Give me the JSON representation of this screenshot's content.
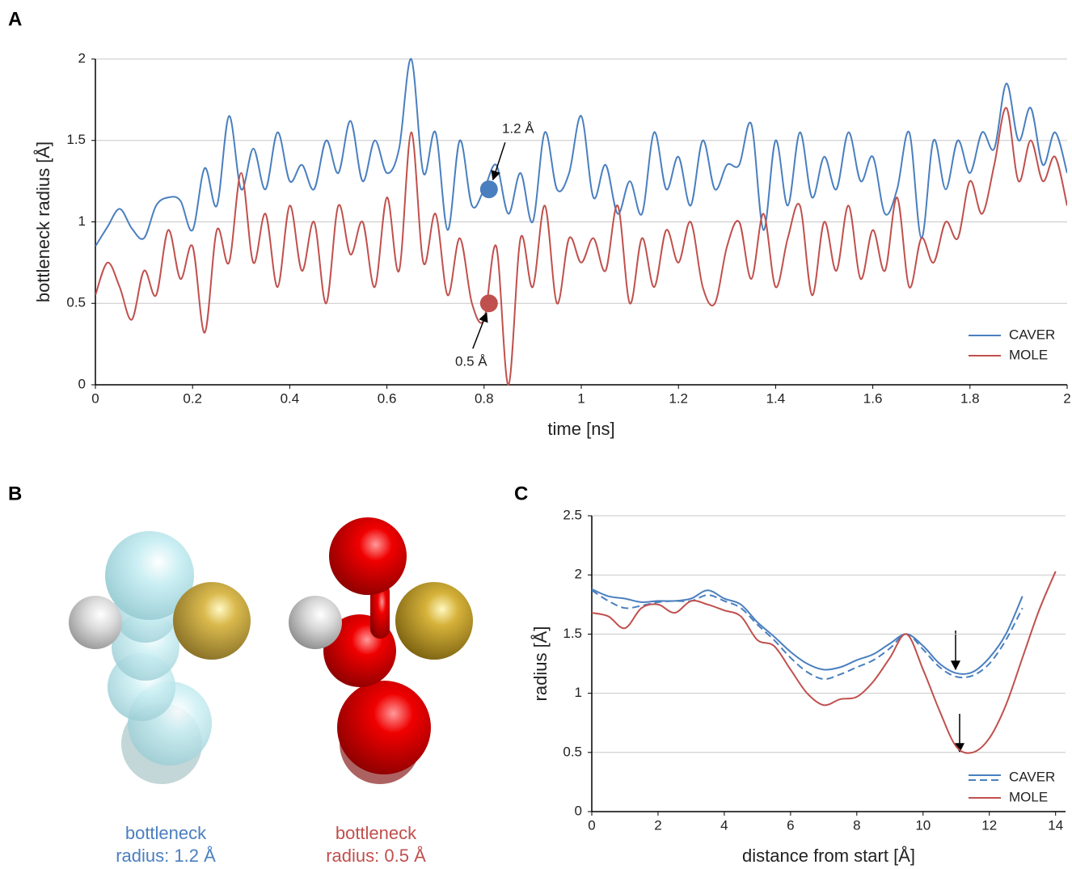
{
  "panel_labels": [
    "A",
    "B",
    "C"
  ],
  "structures": [
    {
      "caption": [
        "bottleneck",
        "radius: 1.2 Å"
      ],
      "color": "#4a7fbf"
    },
    {
      "caption": [
        "bottleneck",
        "radius: 0.5 Å"
      ],
      "color": "#c0504d"
    }
  ],
  "chart_data": [
    {
      "type": "line",
      "xlabel": "time [ns]",
      "ylabel": "bottleneck radius [Å]",
      "xlim": [
        0,
        2
      ],
      "xticks": [
        0,
        0.2,
        0.4,
        0.6,
        0.8,
        1,
        1.2,
        1.4,
        1.6,
        1.8,
        2
      ],
      "ylim": [
        0,
        2
      ],
      "yticks": [
        0,
        0.5,
        1,
        1.5,
        2
      ],
      "grid": true,
      "legend": "lower right",
      "x": [
        0,
        0.025,
        0.05,
        0.075,
        0.1,
        0.125,
        0.15,
        0.175,
        0.2,
        0.225,
        0.25,
        0.275,
        0.3,
        0.325,
        0.35,
        0.375,
        0.4,
        0.425,
        0.45,
        0.475,
        0.5,
        0.525,
        0.55,
        0.575,
        0.6,
        0.625,
        0.65,
        0.675,
        0.7,
        0.725,
        0.75,
        0.775,
        0.8,
        0.825,
        0.85,
        0.875,
        0.9,
        0.925,
        0.95,
        0.975,
        1,
        1.025,
        1.05,
        1.075,
        1.1,
        1.125,
        1.15,
        1.175,
        1.2,
        1.225,
        1.25,
        1.275,
        1.3,
        1.325,
        1.35,
        1.375,
        1.4,
        1.425,
        1.45,
        1.475,
        1.5,
        1.525,
        1.55,
        1.575,
        1.6,
        1.625,
        1.65,
        1.675,
        1.7,
        1.725,
        1.75,
        1.775,
        1.8,
        1.825,
        1.85,
        1.875,
        1.9,
        1.925,
        1.95,
        1.975,
        2
      ],
      "series": [
        {
          "name": "CAVER",
          "color": "#4a7fbf",
          "values": [
            0.85,
            0.97,
            1.08,
            0.96,
            0.9,
            1.1,
            1.15,
            1.13,
            0.95,
            1.33,
            1.1,
            1.65,
            1.2,
            1.45,
            1.2,
            1.55,
            1.25,
            1.35,
            1.2,
            1.5,
            1.3,
            1.62,
            1.25,
            1.5,
            1.3,
            1.45,
            2.0,
            1.3,
            1.55,
            0.95,
            1.5,
            1.1,
            1.2,
            1.35,
            1.05,
            1.3,
            1.0,
            1.55,
            1.2,
            1.3,
            1.65,
            1.15,
            1.35,
            1.05,
            1.25,
            1.05,
            1.55,
            1.2,
            1.4,
            1.1,
            1.5,
            1.2,
            1.35,
            1.35,
            1.6,
            0.95,
            1.5,
            1.1,
            1.55,
            1.15,
            1.4,
            1.2,
            1.55,
            1.25,
            1.4,
            1.05,
            1.2,
            1.55,
            0.9,
            1.5,
            1.2,
            1.5,
            1.3,
            1.55,
            1.45,
            1.85,
            1.5,
            1.7,
            1.35,
            1.55,
            1.3
          ]
        },
        {
          "name": "MOLE",
          "color": "#c0504d",
          "values": [
            0.55,
            0.75,
            0.6,
            0.4,
            0.7,
            0.55,
            0.95,
            0.65,
            0.85,
            0.32,
            0.95,
            0.75,
            1.3,
            0.75,
            1.05,
            0.6,
            1.1,
            0.7,
            1.0,
            0.5,
            1.1,
            0.8,
            1.0,
            0.6,
            1.15,
            0.7,
            1.55,
            0.75,
            1.05,
            0.55,
            0.9,
            0.5,
            0.4,
            0.85,
            0.0,
            0.9,
            0.6,
            1.1,
            0.5,
            0.9,
            0.75,
            0.9,
            0.7,
            1.1,
            0.5,
            0.9,
            0.6,
            0.95,
            0.75,
            1.0,
            0.6,
            0.5,
            0.85,
            1.0,
            0.65,
            1.05,
            0.6,
            0.9,
            1.1,
            0.55,
            1.0,
            0.7,
            1.1,
            0.65,
            0.95,
            0.7,
            1.15,
            0.6,
            0.9,
            0.75,
            1.0,
            0.9,
            1.25,
            1.05,
            1.35,
            1.7,
            1.25,
            1.5,
            1.25,
            1.4,
            1.1
          ]
        }
      ],
      "annotations": [
        {
          "label": "1.2 Å",
          "x": 0.81,
          "y": 1.2,
          "color": "#4a7fbf"
        },
        {
          "label": "0.5 Å",
          "x": 0.81,
          "y": 0.5,
          "color": "#c0504d"
        }
      ]
    },
    {
      "type": "line",
      "xlabel": "distance from start [Å]",
      "ylabel": "radius [Å]",
      "xlim": [
        0,
        14.3
      ],
      "xticks": [
        0,
        2,
        4,
        6,
        8,
        10,
        12,
        14
      ],
      "ylim": [
        0,
        2.5
      ],
      "yticks": [
        0,
        0.5,
        1,
        1.5,
        2,
        2.5
      ],
      "grid": true,
      "legend": "lower right",
      "x": [
        0,
        0.5,
        1,
        1.5,
        2,
        2.5,
        3,
        3.5,
        4,
        4.5,
        5,
        5.5,
        6,
        6.5,
        7,
        7.5,
        8,
        8.5,
        9,
        9.5,
        10,
        10.5,
        11,
        11.5,
        12,
        12.5,
        13,
        13.5,
        14
      ],
      "series": [
        {
          "name": "CAVER",
          "color": "#4a7fbf",
          "values": [
            1.88,
            1.82,
            1.8,
            1.77,
            1.78,
            1.78,
            1.8,
            1.87,
            1.8,
            1.75,
            1.6,
            1.48,
            1.35,
            1.25,
            1.2,
            1.22,
            1.28,
            1.33,
            1.42,
            1.5,
            1.4,
            1.25,
            1.17,
            1.18,
            1.3,
            1.5,
            1.82,
            null,
            null
          ]
        },
        {
          "color": "#4a7fbf",
          "dash": true,
          "values": [
            1.87,
            1.78,
            1.72,
            1.74,
            1.77,
            1.78,
            1.78,
            1.83,
            1.78,
            1.72,
            1.58,
            1.45,
            1.3,
            1.18,
            1.12,
            1.16,
            1.22,
            1.28,
            1.38,
            1.5,
            1.37,
            1.22,
            1.14,
            1.15,
            1.25,
            1.45,
            1.72,
            null,
            null
          ]
        },
        {
          "name": "MOLE",
          "color": "#c0504d",
          "values": [
            1.68,
            1.65,
            1.55,
            1.72,
            1.75,
            1.68,
            1.78,
            1.75,
            1.7,
            1.65,
            1.45,
            1.4,
            1.2,
            1.0,
            0.9,
            0.95,
            0.97,
            1.1,
            1.3,
            1.5,
            1.2,
            0.85,
            0.55,
            0.5,
            0.62,
            0.9,
            1.3,
            1.7,
            2.03
          ]
        }
      ]
    }
  ]
}
